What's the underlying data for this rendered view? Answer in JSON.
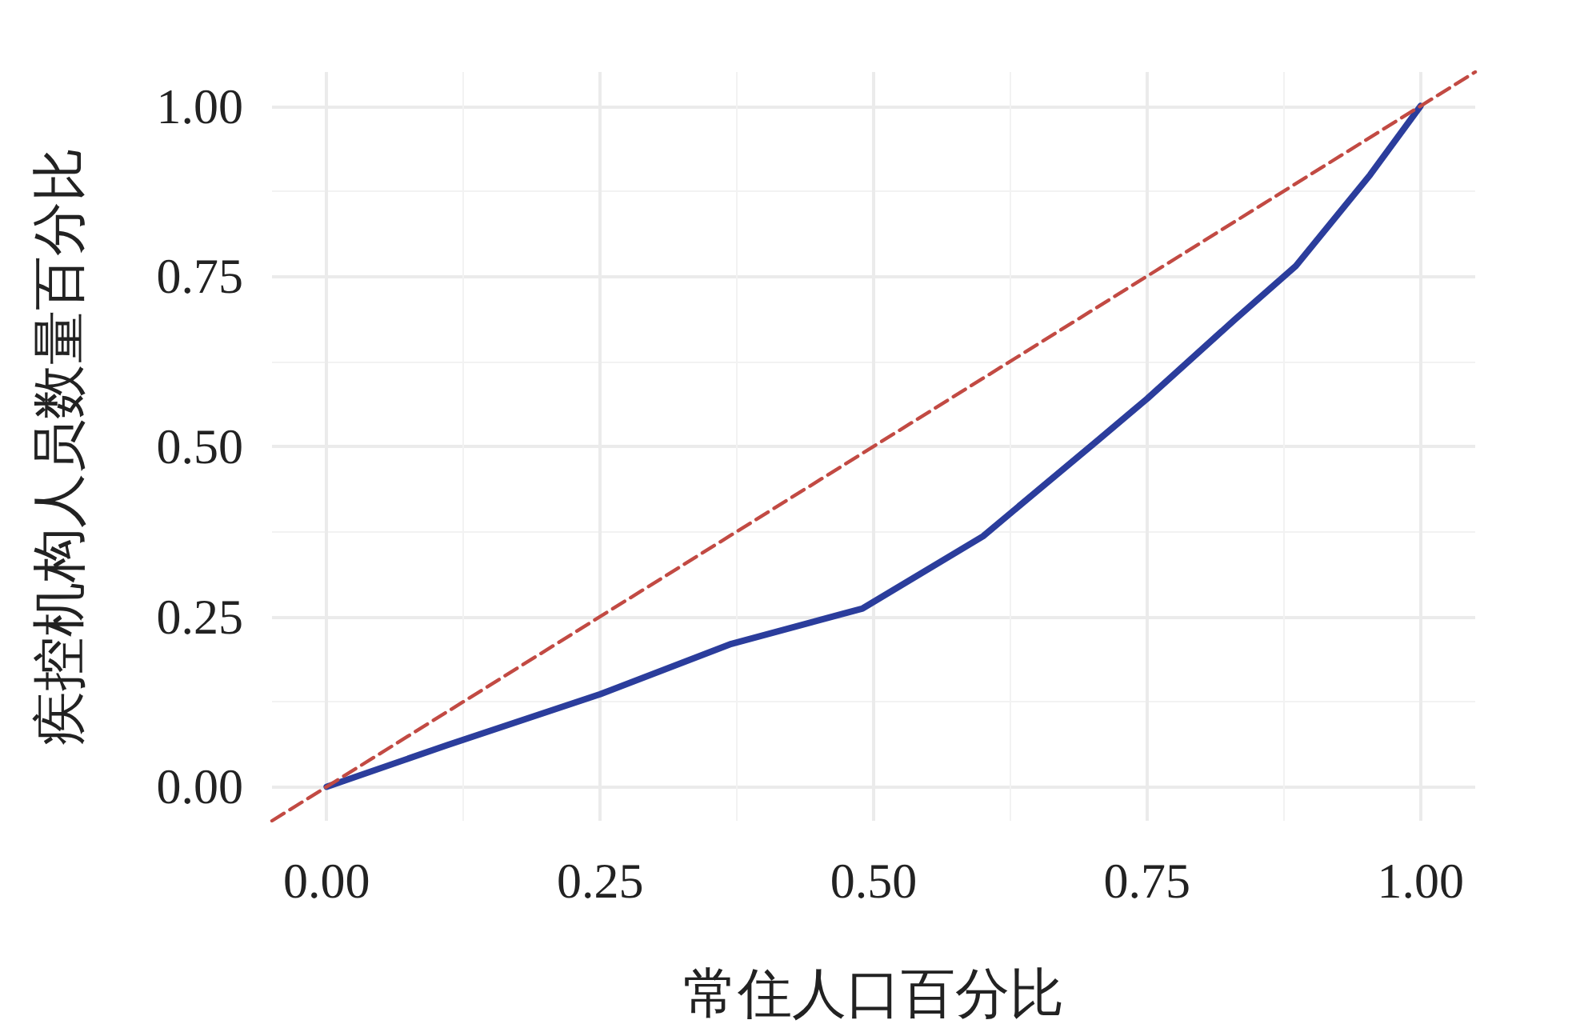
{
  "chart_data": {
    "type": "line",
    "xlabel": "常住人口百分比",
    "ylabel": "疾控机构人员数量百分比",
    "xlim": [
      -0.05,
      1.05
    ],
    "ylim": [
      -0.05,
      1.05
    ],
    "xticks": [
      {
        "value": 0,
        "label": "0.00"
      },
      {
        "value": 0.25,
        "label": "0.25"
      },
      {
        "value": 0.5,
        "label": "0.50"
      },
      {
        "value": 0.75,
        "label": "0.75"
      },
      {
        "value": 1,
        "label": "1.00"
      }
    ],
    "yticks": [
      {
        "value": 0,
        "label": "0.00"
      },
      {
        "value": 0.25,
        "label": "0.25"
      },
      {
        "value": 0.5,
        "label": "0.50"
      },
      {
        "value": 0.75,
        "label": "0.75"
      },
      {
        "value": 1,
        "label": "1.00"
      }
    ],
    "grid": true,
    "marker": "none",
    "line_style": "solid",
    "series": [
      {
        "color": "#2b3d9c",
        "x": [
          0,
          0.11,
          0.25,
          0.37,
          0.49,
          0.6,
          0.705,
          0.75,
          0.83,
          0.886,
          0.954,
          1
        ],
        "values": [
          0,
          0.061,
          0.136,
          0.21,
          0.262,
          0.368,
          0.509,
          0.57,
          0.686,
          0.765,
          0.899,
          1
        ]
      },
      {
        "color": "#c24a43",
        "line_style": "dashed",
        "x": [
          -0.05,
          1.05
        ],
        "values": [
          -0.05,
          1.05
        ]
      }
    ]
  }
}
